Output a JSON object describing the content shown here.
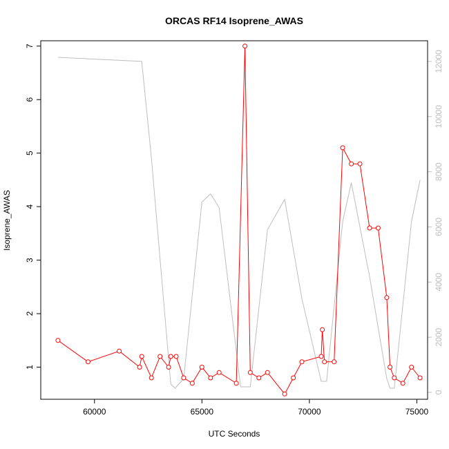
{
  "chart_data": {
    "type": "line",
    "title": "ORCAS RF14 Isoprene_AWAS",
    "xlabel": "UTC Seconds",
    "ylabel": "Isoprene_AWAS",
    "xlim": [
      57500,
      75500
    ],
    "ylim": [
      0.4,
      7.1
    ],
    "y2lim": [
      -250,
      12750
    ],
    "xticks": [
      60000,
      65000,
      70000,
      75000
    ],
    "yticks": [
      1,
      2,
      3,
      4,
      5,
      6,
      7
    ],
    "y2ticks": [
      0,
      2000,
      4000,
      6000,
      8000,
      10000,
      12000
    ],
    "grid": false,
    "series": [
      {
        "axis": "left",
        "color": "#ff0000",
        "marker": "open-circle",
        "x": [
          58300,
          59700,
          61150,
          62100,
          62200,
          62650,
          63050,
          63450,
          63550,
          63800,
          64150,
          64550,
          65000,
          65400,
          65800,
          66600,
          67000,
          67250,
          67650,
          68050,
          68850,
          69250,
          69650,
          70550,
          70600,
          70700,
          71150,
          71550,
          71950,
          72350,
          72800,
          73200,
          73600,
          73750,
          73950,
          74350,
          74750,
          75150
        ],
        "values": [
          1.5,
          1.1,
          1.3,
          1.0,
          1.2,
          0.8,
          1.2,
          1.0,
          1.2,
          1.2,
          0.8,
          0.7,
          1.0,
          0.8,
          0.9,
          0.7,
          7.0,
          0.9,
          0.8,
          0.9,
          0.5,
          0.8,
          1.1,
          1.2,
          1.7,
          1.1,
          1.1,
          5.1,
          4.8,
          4.8,
          3.6,
          3.6,
          2.3,
          1.0,
          0.8,
          0.7,
          1.0,
          0.8
        ]
      },
      {
        "axis": "right",
        "color": "#bebebe",
        "marker": "none",
        "x": [
          58300,
          62200,
          62650,
          63550,
          63750,
          64150,
          65000,
          65400,
          65800,
          66800,
          67250,
          68050,
          68850,
          69650,
          70550,
          70800,
          71550,
          71950,
          72800,
          73600,
          73750,
          73950,
          74750,
          75150
        ],
        "values": [
          12150,
          12000,
          8500,
          300,
          150,
          500,
          6900,
          7200,
          6700,
          200,
          200,
          5900,
          7000,
          3400,
          400,
          400,
          6200,
          7600,
          4200,
          500,
          150,
          150,
          6200,
          7700
        ]
      }
    ]
  }
}
